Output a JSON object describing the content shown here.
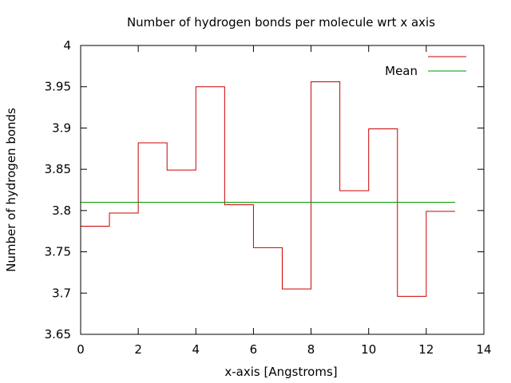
{
  "chart_data": {
    "type": "line",
    "title": "Number of hydrogen bonds per molecule wrt x axis",
    "xlabel": "x-axis [Angstroms]",
    "ylabel": "Number of hydrogen bonds",
    "xlim": [
      0,
      14
    ],
    "ylim": [
      3.65,
      4
    ],
    "xticks": [
      0,
      2,
      4,
      6,
      8,
      10,
      12,
      14
    ],
    "xtick_labels": [
      "0",
      "2",
      "4",
      "6",
      "8",
      "10",
      "12",
      "14"
    ],
    "yticks": [
      3.65,
      3.7,
      3.75,
      3.8,
      3.85,
      3.9,
      3.95,
      4
    ],
    "ytick_labels": [
      "3.65",
      "3.7",
      "3.75",
      "3.8",
      "3.85",
      "3.9",
      "3.95",
      "4"
    ],
    "grid": false,
    "legend_position": "top-right",
    "series": [
      {
        "name": "",
        "style": "steps",
        "color": "#cc0000",
        "x": [
          0,
          1,
          2,
          3,
          4,
          5,
          6,
          7,
          8,
          9,
          10,
          11,
          12,
          13
        ],
        "y": [
          3.781,
          3.797,
          3.882,
          3.849,
          3.95,
          3.807,
          3.755,
          3.705,
          3.956,
          3.824,
          3.899,
          3.696,
          3.799,
          3.799
        ]
      },
      {
        "name": "Mean",
        "style": "line",
        "color": "#009900",
        "x": [
          0,
          13
        ],
        "y": [
          3.81,
          3.81
        ]
      }
    ]
  }
}
